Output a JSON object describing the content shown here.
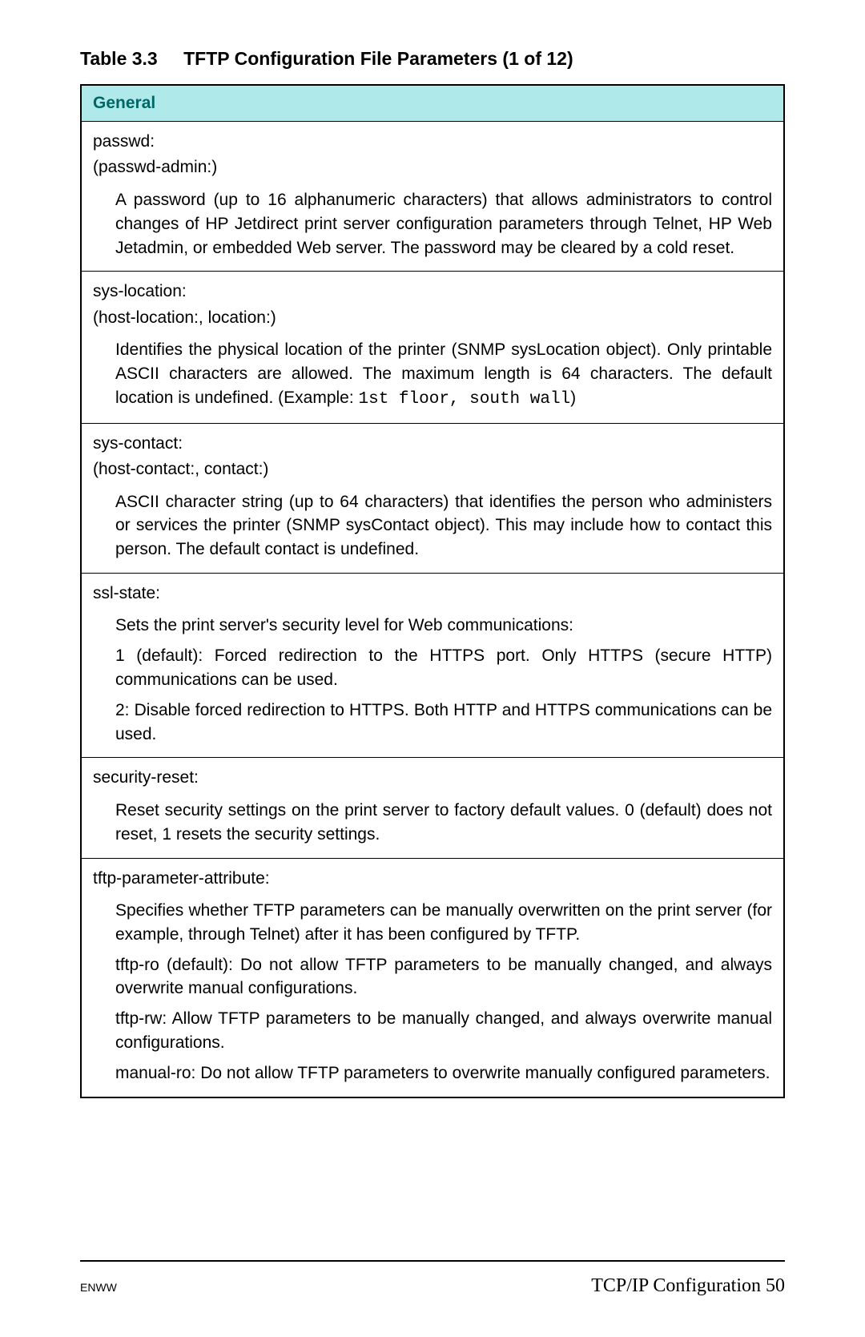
{
  "caption": {
    "number": "Table 3.3",
    "title": "TFTP Configuration File Parameters (1 of 12)"
  },
  "section_header": "General",
  "rows": [
    {
      "names": [
        "passwd:",
        "(passwd-admin:)"
      ],
      "desc": [
        "A password (up to 16 alphanumeric characters) that allows administrators to control changes of HP Jetdirect print server configuration parameters through Telnet, HP Web Jetadmin, or embedded Web server. The password may be cleared by a cold reset."
      ]
    },
    {
      "names": [
        "sys-location:",
        "(host-location:, location:)"
      ],
      "desc": [
        {
          "segments": [
            {
              "text": "Identifies the physical location of the printer (SNMP sysLocation object). Only printable ASCII characters are allowed. The maximum length is 64 characters. The default location is undefined. (Example: ",
              "mono": false
            },
            {
              "text": "1st floor, south wall",
              "mono": true
            },
            {
              "text": ")",
              "mono": false
            }
          ]
        }
      ]
    },
    {
      "names": [
        "sys-contact:",
        "(host-contact:, contact:)"
      ],
      "desc": [
        "ASCII character string (up to 64 characters) that identifies the person who administers or services the printer (SNMP sysContact object). This may include how to contact this person. The default contact is undefined."
      ]
    },
    {
      "names": [
        "ssl-state:"
      ],
      "desc": [
        "Sets the print server's security level for Web communications:",
        "1 (default): Forced redirection to the HTTPS port. Only HTTPS (secure HTTP) communications can be used.",
        "2: Disable forced redirection to HTTPS. Both HTTP and HTTPS communications can be used."
      ]
    },
    {
      "names": [
        "security-reset:"
      ],
      "desc": [
        "Reset security settings on the print server to factory default values. 0 (default) does not reset, 1 resets the security settings."
      ]
    },
    {
      "names": [
        "tftp-parameter-attribute:"
      ],
      "desc": [
        "Specifies whether TFTP parameters can be manually overwritten on the print server (for example, through Telnet) after it has been configured by TFTP.",
        "tftp-ro (default): Do not allow TFTP parameters to be manually changed, and always overwrite manual configurations.",
        "tftp-rw: Allow TFTP parameters to be manually changed, and always overwrite manual configurations.",
        "manual-ro: Do not allow TFTP parameters to overwrite manually configured parameters."
      ]
    }
  ],
  "footer": {
    "left": "ENWW",
    "right_text": "TCP/IP Configuration",
    "page_number": "50"
  },
  "colors": {
    "section_header_bg": "#b0e9e9",
    "section_header_fg": "#006666",
    "border": "#000000",
    "text": "#000000",
    "background": "#ffffff"
  },
  "typography": {
    "caption_fontsize": 23,
    "body_fontsize": 21,
    "footer_left_fontsize": 14,
    "footer_right_fontsize": 24
  }
}
